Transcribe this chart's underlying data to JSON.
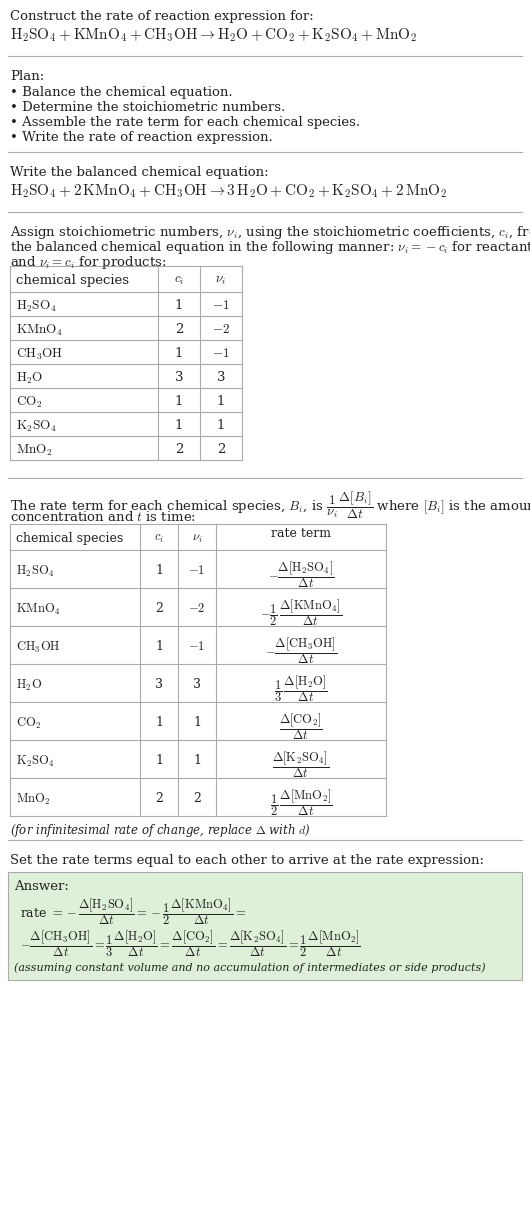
{
  "bg_color": "#ffffff",
  "text_color": "#222222",
  "table_border_color": "#aaaaaa",
  "section_line_color": "#aaaaaa",
  "answer_box_color": "#dff0d8",
  "font_size": 9.5,
  "font_size_eq": 11,
  "font_size_small": 8.5,
  "sec1_title": "Construct the rate of reaction expression for:",
  "sec1_rxn": "$\\mathrm{H_2SO_4 + KMnO_4 + CH_3OH} \\rightarrow \\mathrm{H_2O + CO_2 + K_2SO_4 + MnO_2}$",
  "sec2_header": "Plan:",
  "sec2_items": [
    "Balance the chemical equation.",
    "Determine the stoichiometric numbers.",
    "Assemble the rate term for each chemical species.",
    "Write the rate of reaction expression."
  ],
  "sec3_header": "Write the balanced chemical equation:",
  "sec3_rxn": "$\\mathrm{H_2SO_4 + 2\\,KMnO_4 + CH_3OH} \\rightarrow \\mathrm{3\\,H_2O + CO_2 + K_2SO_4 + 2\\,MnO_2}$",
  "sec4_text1": "Assign stoichiometric numbers, $\\nu_i$, using the stoichiometric coefficients, $c_i$, from",
  "sec4_text2": "the balanced chemical equation in the following manner: $\\nu_i = -c_i$ for reactants",
  "sec4_text3": "and $\\nu_i = c_i$ for products:",
  "table1_col_headers": [
    "chemical species",
    "$c_i$",
    "$\\nu_i$"
  ],
  "table1_rows": [
    [
      "$\\mathrm{H_2SO_4}$",
      "1",
      "$-1$"
    ],
    [
      "$\\mathrm{KMnO_4}$",
      "2",
      "$-2$"
    ],
    [
      "$\\mathrm{CH_3OH}$",
      "1",
      "$-1$"
    ],
    [
      "$\\mathrm{H_2O}$",
      "3",
      "3"
    ],
    [
      "$\\mathrm{CO_2}$",
      "1",
      "1"
    ],
    [
      "$\\mathrm{K_2SO_4}$",
      "1",
      "1"
    ],
    [
      "$\\mathrm{MnO_2}$",
      "2",
      "2"
    ]
  ],
  "sec5_text1": "The rate term for each chemical species, $B_i$, is $\\dfrac{1}{\\nu_i}\\dfrac{\\Delta[B_i]}{\\Delta t}$ where $[B_i]$ is the amount",
  "sec5_text2": "concentration and $t$ is time:",
  "table2_col_headers": [
    "chemical species",
    "$c_i$",
    "$\\nu_i$",
    "rate term"
  ],
  "table2_rows": [
    [
      "$\\mathrm{H_2SO_4}$",
      "1",
      "$-1$",
      "$-\\dfrac{\\Delta[\\mathrm{H_2SO_4}]}{\\Delta t}$"
    ],
    [
      "$\\mathrm{KMnO_4}$",
      "2",
      "$-2$",
      "$-\\dfrac{1}{2}\\,\\dfrac{\\Delta[\\mathrm{KMnO_4}]}{\\Delta t}$"
    ],
    [
      "$\\mathrm{CH_3OH}$",
      "1",
      "$-1$",
      "$-\\dfrac{\\Delta[\\mathrm{CH_3OH}]}{\\Delta t}$"
    ],
    [
      "$\\mathrm{H_2O}$",
      "3",
      "3",
      "$\\dfrac{1}{3}\\,\\dfrac{\\Delta[\\mathrm{H_2O}]}{\\Delta t}$"
    ],
    [
      "$\\mathrm{CO_2}$",
      "1",
      "1",
      "$\\dfrac{\\Delta[\\mathrm{CO_2}]}{\\Delta t}$"
    ],
    [
      "$\\mathrm{K_2SO_4}$",
      "1",
      "1",
      "$\\dfrac{\\Delta[\\mathrm{K_2SO_4}]}{\\Delta t}$"
    ],
    [
      "$\\mathrm{MnO_2}$",
      "2",
      "2",
      "$\\dfrac{1}{2}\\,\\dfrac{\\Delta[\\mathrm{MnO_2}]}{\\Delta t}$"
    ]
  ],
  "sec5_note": "(for infinitesimal rate of change, replace $\\Delta$ with $d$)",
  "sec6_text": "Set the rate terms equal to each other to arrive at the rate expression:",
  "ans_label": "Answer:",
  "ans_rate_line1": "rate $= -\\dfrac{\\Delta[\\mathrm{H_2SO_4}]}{\\Delta t} = -\\dfrac{1}{2}\\dfrac{\\Delta[\\mathrm{KMnO_4}]}{\\Delta t} =$",
  "ans_indent": "$-\\dfrac{\\Delta[\\mathrm{CH_3OH}]}{\\Delta t} = \\dfrac{1}{3}\\dfrac{\\Delta[\\mathrm{H_2O}]}{\\Delta t} = \\dfrac{\\Delta[\\mathrm{CO_2}]}{\\Delta t} = \\dfrac{\\Delta[\\mathrm{K_2SO_4}]}{\\Delta t} = \\dfrac{1}{2}\\dfrac{\\Delta[\\mathrm{MnO_2}]}{\\Delta t}$",
  "ans_note": "(assuming constant volume and no accumulation of intermediates or side products)"
}
